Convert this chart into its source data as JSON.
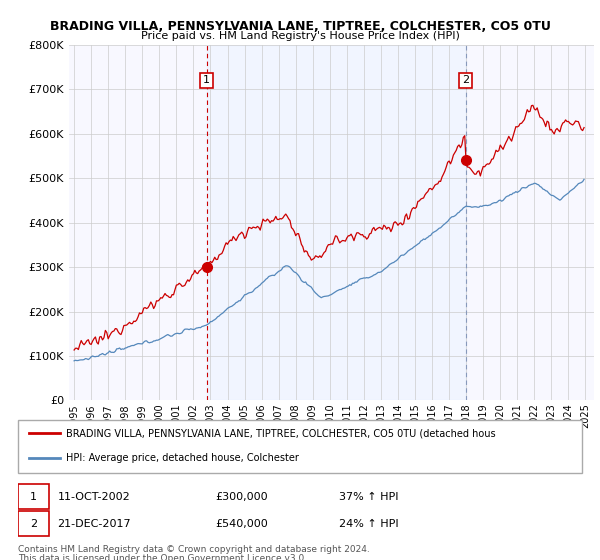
{
  "title": "BRADING VILLA, PENNSYLVANIA LANE, TIPTREE, COLCHESTER, CO5 0TU",
  "subtitle": "Price paid vs. HM Land Registry's House Price Index (HPI)",
  "ylim": [
    0,
    800000
  ],
  "xlim_start": 1994.7,
  "xlim_end": 2025.5,
  "sale1_year": 2002.78,
  "sale1_price": 300000,
  "sale2_year": 2017.97,
  "sale2_price": 540000,
  "red_color": "#cc0000",
  "blue_color": "#5588bb",
  "shade_color": "#ddeeff",
  "bg_color": "#f8f8ff",
  "grid_color": "#cccccc",
  "legend_label_red": "BRADING VILLA, PENNSYLVANIA LANE, TIPTREE, COLCHESTER, CO5 0TU (detached hous",
  "legend_label_blue": "HPI: Average price, detached house, Colchester",
  "footer1": "Contains HM Land Registry data © Crown copyright and database right 2024.",
  "footer2": "This data is licensed under the Open Government Licence v3.0."
}
